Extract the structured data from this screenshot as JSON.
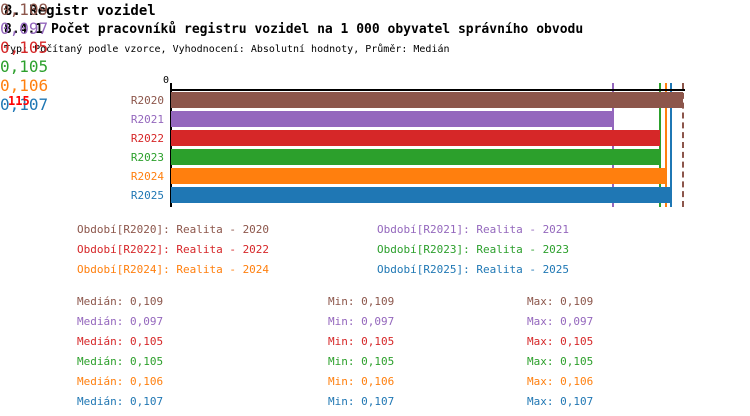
{
  "header": {
    "section_title": "8. Registr vozidel",
    "chart_title": "8.4.1 Počet pracovníků registru vozidel na 1 000 obyvatel správního obvodu",
    "meta_line": "Typ: Počítaný podle vzorce, Vyhodnocení: Absolutní hodnoty, Průměr: Medián"
  },
  "chart_data": {
    "type": "bar",
    "orientation": "horizontal",
    "title": "8.4.1 Počet pracovníků registru vozidel na 1 000 obyvatel správního obvodu",
    "left_id_label": "115",
    "axis_zero_label": "0",
    "categories": [
      "R2020",
      "R2021",
      "R2022",
      "R2023",
      "R2024",
      "R2025"
    ],
    "values": [
      0.109,
      0.097,
      0.105,
      0.105,
      0.106,
      0.107
    ],
    "value_labels": [
      "0,109",
      "0,097",
      "0,105",
      "0,105",
      "0,106",
      "0,107"
    ],
    "series_colors": [
      "#8C564B",
      "#9467BD",
      "#D62728",
      "#2CA02C",
      "#FF7F0E",
      "#1F77B4"
    ],
    "median_line_values": [
      0.109,
      0.097,
      0.105,
      0.105,
      0.106,
      0.107
    ],
    "median_line_styles": [
      "dashed",
      "solid",
      "solid",
      "solid",
      "solid",
      "solid"
    ],
    "grid": false,
    "legend_position": "below"
  },
  "legend": {
    "items": [
      {
        "label": "Období[R2020]: Realita - 2020",
        "color": "#8C564B"
      },
      {
        "label": "Období[R2021]: Realita - 2021",
        "color": "#9467BD"
      },
      {
        "label": "Období[R2022]: Realita - 2022",
        "color": "#D62728"
      },
      {
        "label": "Období[R2023]: Realita - 2023",
        "color": "#2CA02C"
      },
      {
        "label": "Období[R2024]: Realita - 2024",
        "color": "#FF7F0E"
      },
      {
        "label": "Období[R2025]: Realita - 2025",
        "color": "#1F77B4"
      }
    ]
  },
  "stats": {
    "rows": [
      {
        "median": "Medián: 0,109",
        "min": "Min: 0,109",
        "max": "Max: 0,109",
        "color": "#8C564B"
      },
      {
        "median": "Medián: 0,097",
        "min": "Min: 0,097",
        "max": "Max: 0,097",
        "color": "#9467BD"
      },
      {
        "median": "Medián: 0,105",
        "min": "Min: 0,105",
        "max": "Max: 0,105",
        "color": "#D62728"
      },
      {
        "median": "Medián: 0,105",
        "min": "Min: 0,105",
        "max": "Max: 0,105",
        "color": "#2CA02C"
      },
      {
        "median": "Medián: 0,106",
        "min": "Min: 0,106",
        "max": "Max: 0,106",
        "color": "#FF7F0E"
      },
      {
        "median": "Medián: 0,107",
        "min": "Min: 0,107",
        "max": "Max: 0,107",
        "color": "#1F77B4"
      }
    ]
  }
}
